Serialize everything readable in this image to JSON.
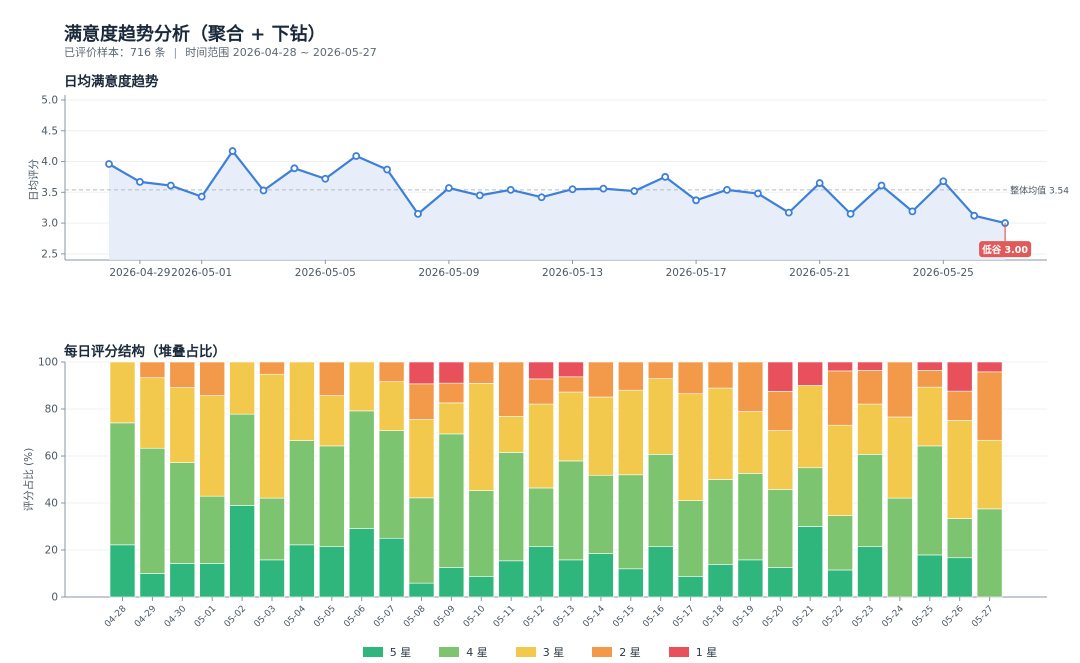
{
  "header": {
    "title": "满意度趋势分析（聚合 + 下钻）",
    "sample": "已评价样本：716 条",
    "separator": "|",
    "range": "时间范围 2026-04-28 ~ 2026-05-27"
  },
  "chart_data": [
    {
      "type": "line",
      "title": "日均满意度趋势",
      "ylabel": "日均评分",
      "ylim": [
        2.4,
        5.0
      ],
      "yticks": [
        2.5,
        3.0,
        3.5,
        4.0,
        4.5,
        5.0
      ],
      "xtick_labels": [
        "2026-04-29",
        "2026-05-01",
        "2026-05-05",
        "2026-05-09",
        "2026-05-13",
        "2026-05-17",
        "2026-05-21",
        "2026-05-25"
      ],
      "x": [
        "2026-04-28",
        "2026-04-29",
        "2026-04-30",
        "2026-05-01",
        "2026-05-02",
        "2026-05-03",
        "2026-05-04",
        "2026-05-05",
        "2026-05-06",
        "2026-05-07",
        "2026-05-08",
        "2026-05-09",
        "2026-05-10",
        "2026-05-11",
        "2026-05-12",
        "2026-05-13",
        "2026-05-14",
        "2026-05-15",
        "2026-05-16",
        "2026-05-17",
        "2026-05-18",
        "2026-05-19",
        "2026-05-20",
        "2026-05-21",
        "2026-05-22",
        "2026-05-23",
        "2026-05-24",
        "2026-05-25",
        "2026-05-26",
        "2026-05-27"
      ],
      "values": [
        3.96,
        3.67,
        3.61,
        3.43,
        4.17,
        3.53,
        3.89,
        3.72,
        4.09,
        3.87,
        3.15,
        3.57,
        3.45,
        3.54,
        3.42,
        3.55,
        3.56,
        3.52,
        3.75,
        3.37,
        3.54,
        3.48,
        3.17,
        3.65,
        3.15,
        3.61,
        3.19,
        3.68,
        3.12,
        3.0
      ],
      "mean_value": 3.54,
      "mean_label": "整体均值 3.54",
      "low_label": "低谷",
      "low_value": "3.00",
      "colors": {
        "line": "#3d7fd9",
        "fill": "#e3ebf8",
        "mean": "#b5bcc5",
        "low": "#e05a5a"
      }
    },
    {
      "type": "bar",
      "stacked": true,
      "title": "每日评分结构（堆叠占比）",
      "ylabel": "评分占比 (%)",
      "ylim": [
        0,
        100
      ],
      "yticks": [
        0,
        20,
        40,
        60,
        80,
        100
      ],
      "categories": [
        "04-28",
        "04-29",
        "04-30",
        "05-01",
        "05-02",
        "05-03",
        "05-04",
        "05-05",
        "05-06",
        "05-07",
        "05-08",
        "05-09",
        "05-10",
        "05-11",
        "05-12",
        "05-13",
        "05-14",
        "05-15",
        "05-16",
        "05-17",
        "05-18",
        "05-19",
        "05-20",
        "05-21",
        "05-22",
        "05-23",
        "05-24",
        "05-25",
        "05-26",
        "05-27"
      ],
      "series": [
        {
          "name": "5 星",
          "color": "#2eb67d",
          "values": [
            22.2,
            10.0,
            14.3,
            14.3,
            38.9,
            15.8,
            22.2,
            21.4,
            29.2,
            25.0,
            5.9,
            12.5,
            8.8,
            15.4,
            21.4,
            15.8,
            18.5,
            12.0,
            21.4,
            8.8,
            13.9,
            15.8,
            12.5,
            30.0,
            11.5,
            21.4,
            0.0,
            17.9,
            16.7,
            0.0
          ]
        },
        {
          "name": "4 星",
          "color": "#7dc471",
          "values": [
            51.9,
            53.3,
            42.9,
            28.6,
            38.9,
            26.3,
            44.4,
            42.9,
            50.0,
            45.8,
            36.3,
            56.9,
            36.5,
            46.1,
            25.0,
            42.1,
            33.3,
            40.0,
            39.3,
            32.2,
            36.1,
            36.8,
            33.3,
            25.0,
            23.1,
            39.3,
            42.1,
            46.4,
            16.7,
            37.5
          ]
        },
        {
          "name": "3 星",
          "color": "#f2c94c",
          "values": [
            25.9,
            30.0,
            31.9,
            42.8,
            22.2,
            52.7,
            33.4,
            21.4,
            20.8,
            20.8,
            33.3,
            13.2,
            45.6,
            15.4,
            35.7,
            29.3,
            33.3,
            36.0,
            32.2,
            45.5,
            38.9,
            26.3,
            25.0,
            35.0,
            38.5,
            21.4,
            34.5,
            25.0,
            41.7,
            29.2
          ]
        },
        {
          "name": "2 星",
          "color": "#f2994a",
          "values": [
            0.0,
            6.7,
            10.9,
            14.3,
            0.0,
            5.2,
            0.0,
            14.3,
            0.0,
            8.4,
            15.2,
            8.4,
            9.1,
            23.1,
            10.7,
            6.5,
            14.9,
            12.0,
            7.1,
            13.5,
            11.1,
            21.1,
            16.7,
            0.0,
            23.1,
            14.3,
            23.4,
            7.1,
            12.5,
            29.1
          ]
        },
        {
          "name": "1 星",
          "color": "#e8505b",
          "values": [
            0.0,
            0.0,
            0.0,
            0.0,
            0.0,
            0.0,
            0.0,
            0.0,
            0.0,
            0.0,
            9.3,
            9.0,
            0.0,
            0.0,
            7.2,
            6.3,
            0.0,
            0.0,
            0.0,
            0.0,
            0.0,
            0.0,
            12.5,
            10.0,
            3.8,
            3.6,
            0.0,
            3.6,
            12.4,
            4.2
          ]
        }
      ]
    }
  ]
}
